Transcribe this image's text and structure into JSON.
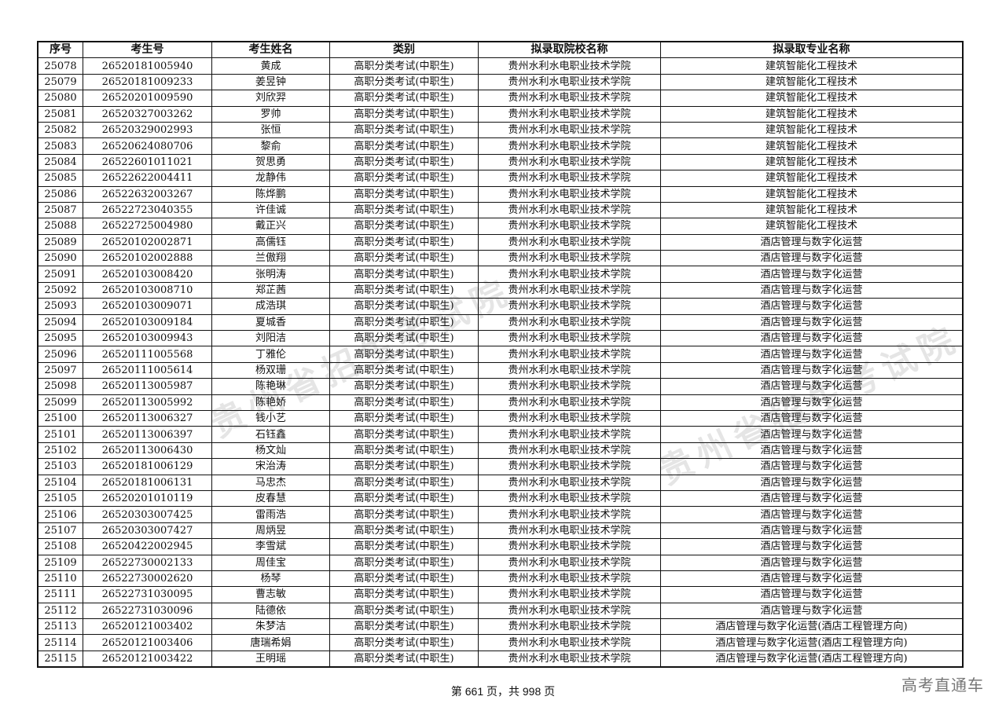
{
  "table": {
    "headers": [
      "序号",
      "考生号",
      "考生姓名",
      "类别",
      "拟录取院校名称",
      "拟录取专业名称"
    ],
    "rows": [
      [
        "25078",
        "26520181005940",
        "黄成",
        "高职分类考试(中职生)",
        "贵州水利水电职业技术学院",
        "建筑智能化工程技术"
      ],
      [
        "25079",
        "26520181009233",
        "姜昱钟",
        "高职分类考试(中职生)",
        "贵州水利水电职业技术学院",
        "建筑智能化工程技术"
      ],
      [
        "25080",
        "26520201009590",
        "刘欣羿",
        "高职分类考试(中职生)",
        "贵州水利水电职业技术学院",
        "建筑智能化工程技术"
      ],
      [
        "25081",
        "26520327003262",
        "罗帅",
        "高职分类考试(中职生)",
        "贵州水利水电职业技术学院",
        "建筑智能化工程技术"
      ],
      [
        "25082",
        "26520329002993",
        "张恒",
        "高职分类考试(中职生)",
        "贵州水利水电职业技术学院",
        "建筑智能化工程技术"
      ],
      [
        "25083",
        "26520624080706",
        "黎俞",
        "高职分类考试(中职生)",
        "贵州水利水电职业技术学院",
        "建筑智能化工程技术"
      ],
      [
        "25084",
        "26522601011021",
        "贺思勇",
        "高职分类考试(中职生)",
        "贵州水利水电职业技术学院",
        "建筑智能化工程技术"
      ],
      [
        "25085",
        "26522622004411",
        "龙静伟",
        "高职分类考试(中职生)",
        "贵州水利水电职业技术学院",
        "建筑智能化工程技术"
      ],
      [
        "25086",
        "26522632003267",
        "陈烨鹏",
        "高职分类考试(中职生)",
        "贵州水利水电职业技术学院",
        "建筑智能化工程技术"
      ],
      [
        "25087",
        "26522723040355",
        "许佳诚",
        "高职分类考试(中职生)",
        "贵州水利水电职业技术学院",
        "建筑智能化工程技术"
      ],
      [
        "25088",
        "26522725004980",
        "戴正兴",
        "高职分类考试(中职生)",
        "贵州水利水电职业技术学院",
        "建筑智能化工程技术"
      ],
      [
        "25089",
        "26520102002871",
        "高儒钰",
        "高职分类考试(中职生)",
        "贵州水利水电职业技术学院",
        "酒店管理与数字化运营"
      ],
      [
        "25090",
        "26520102002888",
        "兰傲翔",
        "高职分类考试(中职生)",
        "贵州水利水电职业技术学院",
        "酒店管理与数字化运营"
      ],
      [
        "25091",
        "26520103008420",
        "张明涛",
        "高职分类考试(中职生)",
        "贵州水利水电职业技术学院",
        "酒店管理与数字化运营"
      ],
      [
        "25092",
        "26520103008710",
        "郑芷茜",
        "高职分类考试(中职生)",
        "贵州水利水电职业技术学院",
        "酒店管理与数字化运营"
      ],
      [
        "25093",
        "26520103009071",
        "成浩琪",
        "高职分类考试(中职生)",
        "贵州水利水电职业技术学院",
        "酒店管理与数字化运营"
      ],
      [
        "25094",
        "26520103009184",
        "夏城香",
        "高职分类考试(中职生)",
        "贵州水利水电职业技术学院",
        "酒店管理与数字化运营"
      ],
      [
        "25095",
        "26520103009943",
        "刘阳洁",
        "高职分类考试(中职生)",
        "贵州水利水电职业技术学院",
        "酒店管理与数字化运营"
      ],
      [
        "25096",
        "26520111005568",
        "丁雅伦",
        "高职分类考试(中职生)",
        "贵州水利水电职业技术学院",
        "酒店管理与数字化运营"
      ],
      [
        "25097",
        "26520111005614",
        "杨双珊",
        "高职分类考试(中职生)",
        "贵州水利水电职业技术学院",
        "酒店管理与数字化运营"
      ],
      [
        "25098",
        "26520113005987",
        "陈艳琳",
        "高职分类考试(中职生)",
        "贵州水利水电职业技术学院",
        "酒店管理与数字化运营"
      ],
      [
        "25099",
        "26520113005992",
        "陈艳娇",
        "高职分类考试(中职生)",
        "贵州水利水电职业技术学院",
        "酒店管理与数字化运营"
      ],
      [
        "25100",
        "26520113006327",
        "钱小艺",
        "高职分类考试(中职生)",
        "贵州水利水电职业技术学院",
        "酒店管理与数字化运营"
      ],
      [
        "25101",
        "26520113006397",
        "石钰鑫",
        "高职分类考试(中职生)",
        "贵州水利水电职业技术学院",
        "酒店管理与数字化运营"
      ],
      [
        "25102",
        "26520113006430",
        "杨文灿",
        "高职分类考试(中职生)",
        "贵州水利水电职业技术学院",
        "酒店管理与数字化运营"
      ],
      [
        "25103",
        "26520181006129",
        "宋治涛",
        "高职分类考试(中职生)",
        "贵州水利水电职业技术学院",
        "酒店管理与数字化运营"
      ],
      [
        "25104",
        "26520181006131",
        "马忠杰",
        "高职分类考试(中职生)",
        "贵州水利水电职业技术学院",
        "酒店管理与数字化运营"
      ],
      [
        "25105",
        "26520201010119",
        "皮春慧",
        "高职分类考试(中职生)",
        "贵州水利水电职业技术学院",
        "酒店管理与数字化运营"
      ],
      [
        "25106",
        "26520303007425",
        "雷雨浩",
        "高职分类考试(中职生)",
        "贵州水利水电职业技术学院",
        "酒店管理与数字化运营"
      ],
      [
        "25107",
        "26520303007427",
        "周炳昱",
        "高职分类考试(中职生)",
        "贵州水利水电职业技术学院",
        "酒店管理与数字化运营"
      ],
      [
        "25108",
        "26520422002945",
        "李雪斌",
        "高职分类考试(中职生)",
        "贵州水利水电职业技术学院",
        "酒店管理与数字化运营"
      ],
      [
        "25109",
        "26522730002133",
        "周佳宝",
        "高职分类考试(中职生)",
        "贵州水利水电职业技术学院",
        "酒店管理与数字化运营"
      ],
      [
        "25110",
        "26522730002620",
        "杨琴",
        "高职分类考试(中职生)",
        "贵州水利水电职业技术学院",
        "酒店管理与数字化运营"
      ],
      [
        "25111",
        "26522731030095",
        "曹志敏",
        "高职分类考试(中职生)",
        "贵州水利水电职业技术学院",
        "酒店管理与数字化运营"
      ],
      [
        "25112",
        "26522731030096",
        "陆德依",
        "高职分类考试(中职生)",
        "贵州水利水电职业技术学院",
        "酒店管理与数字化运营"
      ],
      [
        "25113",
        "26520121003402",
        "朱梦洁",
        "高职分类考试(中职生)",
        "贵州水利水电职业技术学院",
        "酒店管理与数字化运营(酒店工程管理方向)"
      ],
      [
        "25114",
        "26520121003406",
        "唐瑞希娟",
        "高职分类考试(中职生)",
        "贵州水利水电职业技术学院",
        "酒店管理与数字化运营(酒店工程管理方向)"
      ],
      [
        "25115",
        "26520121003422",
        "王明瑶",
        "高职分类考试(中职生)",
        "贵州水利水电职业技术学院",
        "酒店管理与数字化运营(酒店工程管理方向)"
      ]
    ]
  },
  "footer": {
    "page_text": "第 661 页，共 998 页"
  },
  "brand": "高考直通车",
  "watermark": "贵州省招生考试院"
}
